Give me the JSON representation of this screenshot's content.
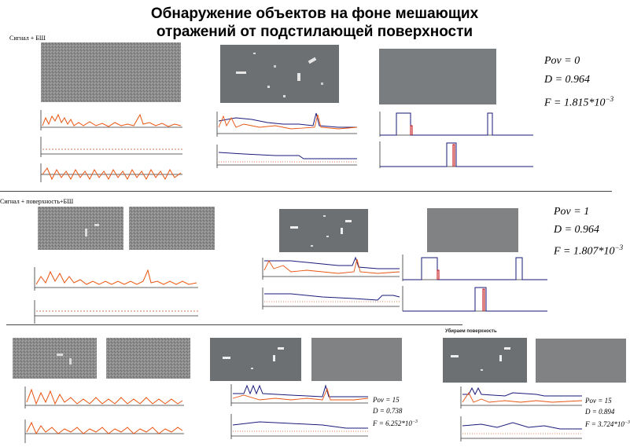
{
  "title_line1": "Обнаружение объектов на фоне мешающих",
  "title_line2": "отражений от подстилающей поверхности",
  "section1": {
    "label": "Сигнал + БШ",
    "metrics": {
      "pov": "Pov = 0",
      "d": "D = 0.964",
      "f": "F = 1.815*10",
      "exp": "−3"
    }
  },
  "section2": {
    "label": "Сигнал + поверхность+БШ",
    "metrics": {
      "pov": "Pov = 1",
      "d": "D = 0.964",
      "f": "F = 1.807*10",
      "exp": "−3"
    }
  },
  "section3": {
    "label": "Убираем поверхность",
    "metrics_left": {
      "pov": "Pov = 15",
      "d": "D = 0.738",
      "f": "F = 6.252*10",
      "exp": "−3"
    },
    "metrics_right": {
      "pov": "Pov = 15",
      "d": "D = 0.894",
      "f": "F = 3.724*10",
      "exp": "−3"
    }
  },
  "colors": {
    "orange": "#e8540f",
    "navy": "#1a1a7a",
    "red": "#c00000"
  }
}
